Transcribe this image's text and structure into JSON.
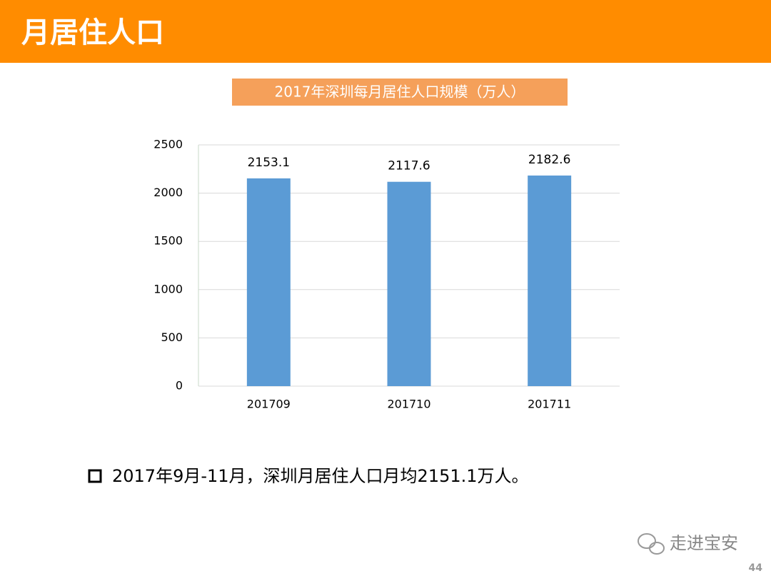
{
  "header": {
    "title": "月居住人口"
  },
  "chart_data": {
    "type": "bar",
    "title": "2017年深圳每月居住人口规模（万人）",
    "categories": [
      "201709",
      "201710",
      "201711"
    ],
    "values": [
      2153.1,
      2117.6,
      2182.6
    ],
    "color": "#5b9bd5",
    "ylim": [
      0,
      2500
    ],
    "yticks": [
      0,
      500,
      1000,
      1500,
      2000,
      2500
    ],
    "grid": true
  },
  "bullet": "2017年9月-11月，深圳月居住人口月均2151.1万人。",
  "watermark": "走进宝安",
  "page_number": "44"
}
